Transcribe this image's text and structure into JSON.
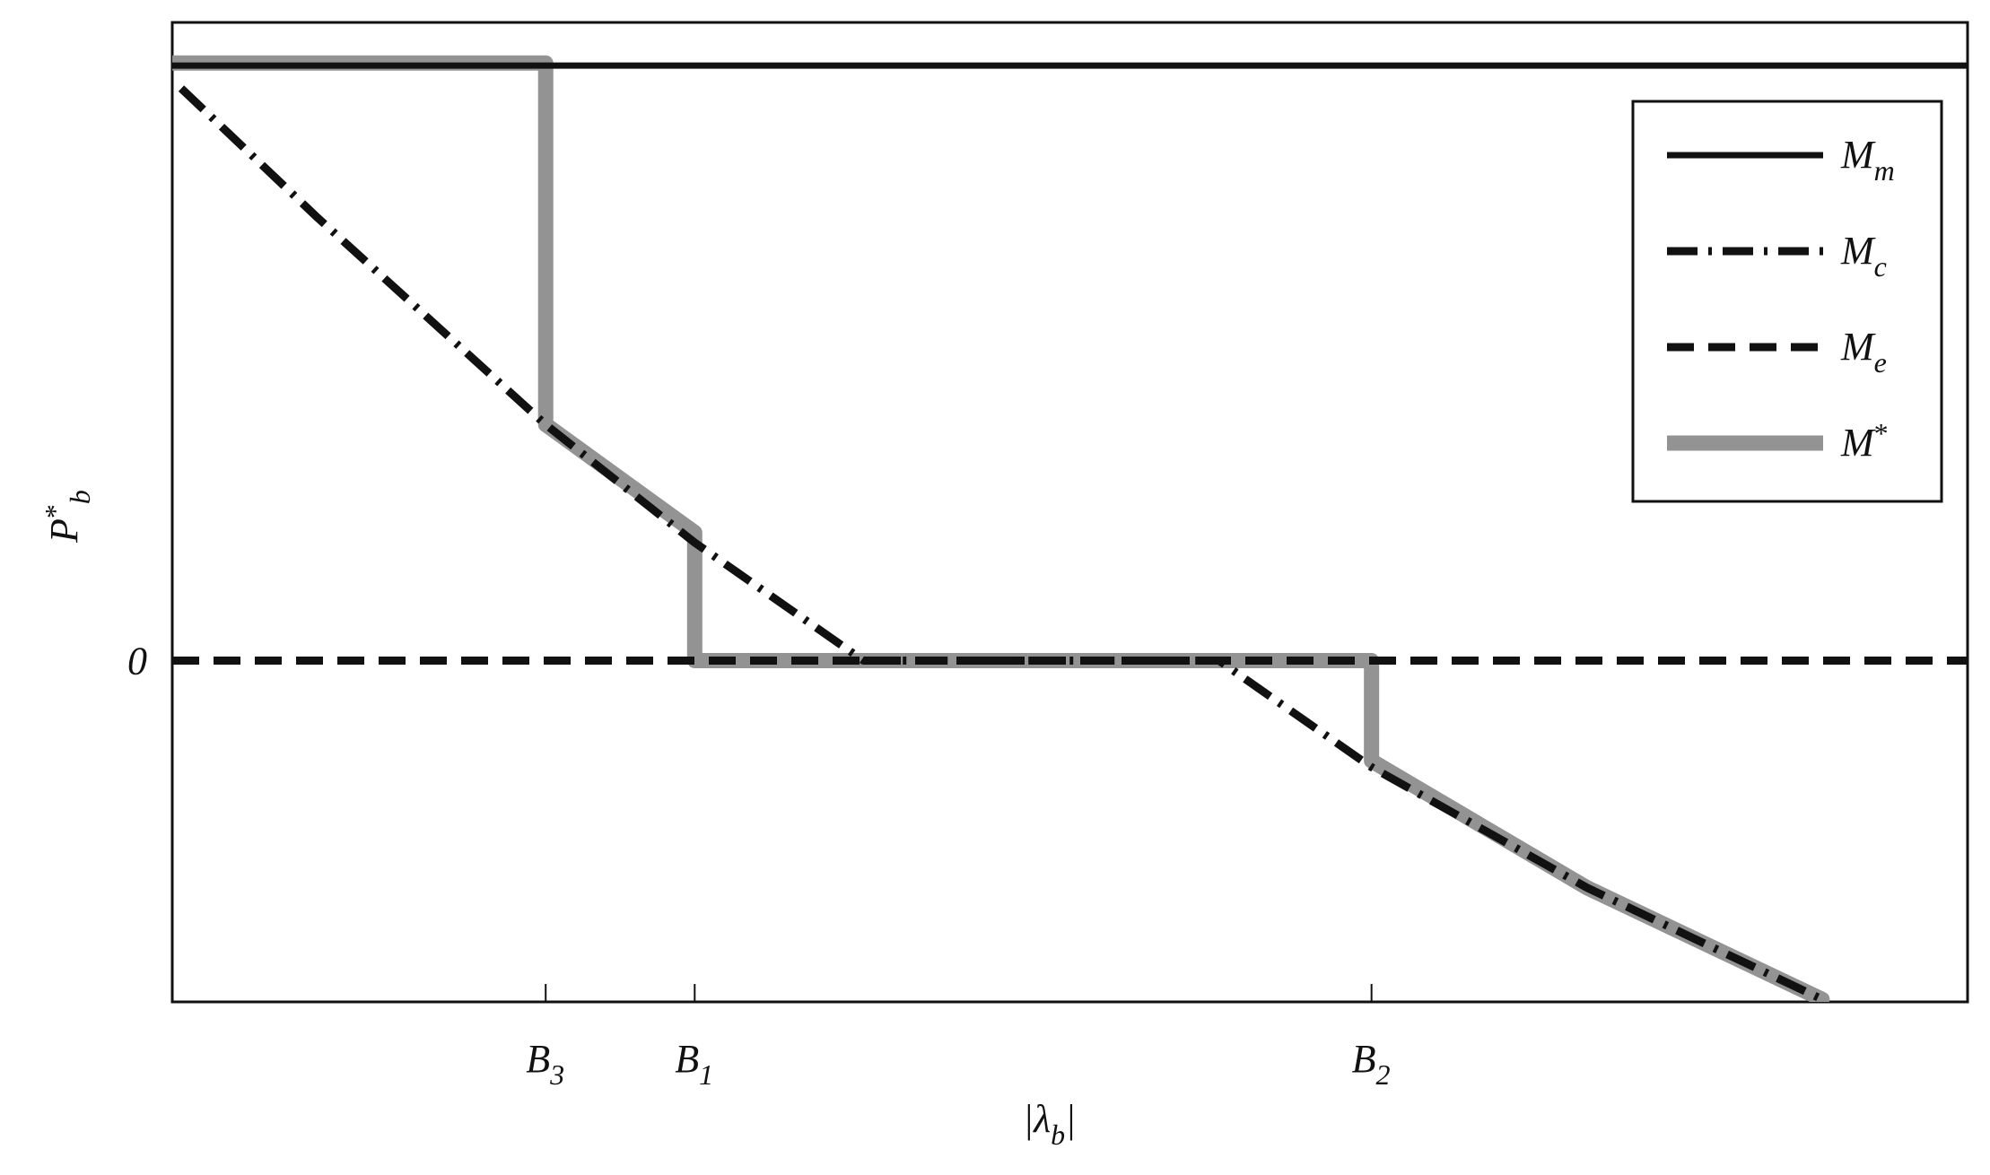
{
  "chart_data": {
    "type": "line",
    "xlabel": "|λb|",
    "ylabel": "P*b",
    "xlim": [
      0,
      100
    ],
    "ylim": [
      -2.69,
      5.03
    ],
    "xticks": [
      {
        "value": 20.8,
        "label": "B3"
      },
      {
        "value": 29.1,
        "label": "B1"
      },
      {
        "value": 66.8,
        "label": "B2"
      }
    ],
    "yticks": [
      0
    ],
    "grid": false,
    "legend": "upper right",
    "series": [
      {
        "name": "Mm",
        "color": "#111111",
        "style": "solid",
        "x": [
          0,
          100
        ],
        "values": [
          4.69,
          4.69
        ]
      },
      {
        "name": "Mc",
        "color": "#111111",
        "style": "dashdot",
        "x": [
          0.5,
          8.1,
          20.8,
          29.1,
          38.5,
          58.3,
          66.8,
          78.8,
          91.9
        ],
        "values": [
          4.51,
          3.49,
          1.86,
          0.93,
          0,
          0,
          -0.84,
          -1.79,
          -2.67
        ]
      },
      {
        "name": "Me",
        "color": "#111111",
        "style": "dashed",
        "x": [
          0,
          100
        ],
        "values": [
          0,
          0
        ]
      },
      {
        "name": "M*",
        "color": "#939393",
        "style": "thick",
        "x": [
          0,
          20.8,
          20.8,
          29.1,
          29.1,
          66.8,
          66.8,
          78.8,
          91.9
        ],
        "values": [
          4.71,
          4.71,
          1.86,
          1.01,
          0,
          0,
          -0.79,
          -1.79,
          -2.67
        ]
      }
    ]
  }
}
